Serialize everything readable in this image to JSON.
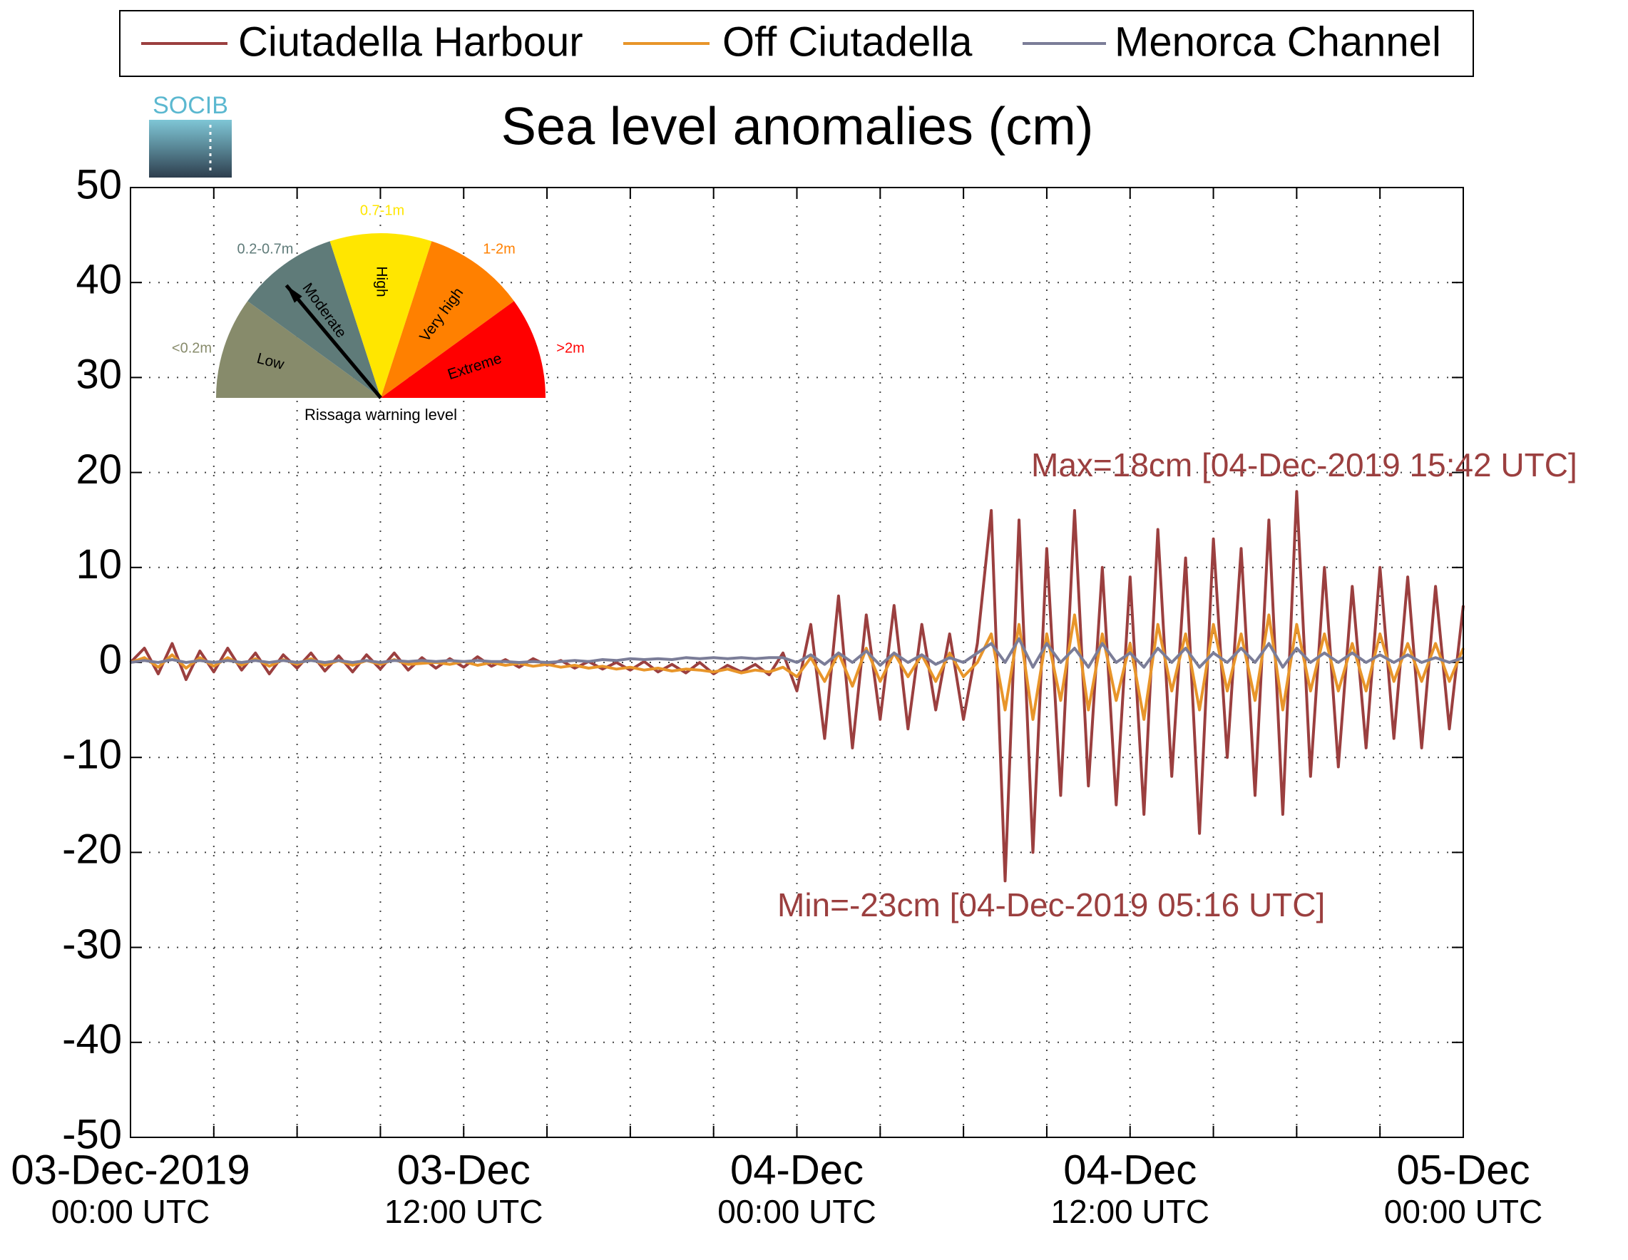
{
  "chart_data": {
    "type": "line",
    "title": "Sea level anomalies (cm)",
    "logo": "SOCIB",
    "x": [
      "2019-12-03T00:00",
      "2019-12-03T00:30",
      "2019-12-03T01:00",
      "2019-12-03T01:30",
      "2019-12-03T02:00",
      "2019-12-03T02:30",
      "2019-12-03T03:00",
      "2019-12-03T03:30",
      "2019-12-03T04:00",
      "2019-12-03T04:30",
      "2019-12-03T05:00",
      "2019-12-03T05:30",
      "2019-12-03T06:00",
      "2019-12-03T06:30",
      "2019-12-03T07:00",
      "2019-12-03T07:30",
      "2019-12-03T08:00",
      "2019-12-03T08:30",
      "2019-12-03T09:00",
      "2019-12-03T09:30",
      "2019-12-03T10:00",
      "2019-12-03T10:30",
      "2019-12-03T11:00",
      "2019-12-03T11:30",
      "2019-12-03T12:00",
      "2019-12-03T12:30",
      "2019-12-03T13:00",
      "2019-12-03T13:30",
      "2019-12-03T14:00",
      "2019-12-03T14:30",
      "2019-12-03T15:00",
      "2019-12-03T15:30",
      "2019-12-03T16:00",
      "2019-12-03T16:30",
      "2019-12-03T17:00",
      "2019-12-03T17:30",
      "2019-12-03T18:00",
      "2019-12-03T18:30",
      "2019-12-03T19:00",
      "2019-12-03T19:30",
      "2019-12-03T20:00",
      "2019-12-03T20:30",
      "2019-12-03T21:00",
      "2019-12-03T21:30",
      "2019-12-03T22:00",
      "2019-12-03T22:30",
      "2019-12-03T23:00",
      "2019-12-03T23:30",
      "2019-12-04T00:00",
      "2019-12-04T00:30",
      "2019-12-04T01:00",
      "2019-12-04T01:30",
      "2019-12-04T02:00",
      "2019-12-04T02:30",
      "2019-12-04T03:00",
      "2019-12-04T03:30",
      "2019-12-04T04:00",
      "2019-12-04T04:30",
      "2019-12-04T05:00",
      "2019-12-04T05:30",
      "2019-12-04T06:00",
      "2019-12-04T06:30",
      "2019-12-04T07:00",
      "2019-12-04T07:30",
      "2019-12-04T08:00",
      "2019-12-04T08:30",
      "2019-12-04T09:00",
      "2019-12-04T09:30",
      "2019-12-04T10:00",
      "2019-12-04T10:30",
      "2019-12-04T11:00",
      "2019-12-04T11:30",
      "2019-12-04T12:00",
      "2019-12-04T12:30",
      "2019-12-04T13:00",
      "2019-12-04T13:30",
      "2019-12-04T14:00",
      "2019-12-04T14:30",
      "2019-12-04T15:00",
      "2019-12-04T15:30",
      "2019-12-04T16:00",
      "2019-12-04T16:30",
      "2019-12-04T17:00",
      "2019-12-04T17:30",
      "2019-12-04T18:00",
      "2019-12-04T18:30",
      "2019-12-04T19:00",
      "2019-12-04T19:30",
      "2019-12-04T20:00",
      "2019-12-04T20:30",
      "2019-12-04T21:00",
      "2019-12-04T21:30",
      "2019-12-04T22:00",
      "2019-12-04T22:30",
      "2019-12-04T23:00",
      "2019-12-04T23:30",
      "2019-12-05T00:00"
    ],
    "series": [
      {
        "name": "Ciutadella Harbour",
        "color": "#9b3f3f",
        "values": [
          0,
          1.5,
          -1.2,
          2,
          -1.8,
          1.2,
          -1,
          1.5,
          -0.8,
          1,
          -1.2,
          0.8,
          -0.6,
          1,
          -0.9,
          0.7,
          -1,
          0.8,
          -0.7,
          1,
          -0.8,
          0.5,
          -0.6,
          0.4,
          -0.5,
          0.6,
          -0.4,
          0.3,
          -0.5,
          0.4,
          -0.3,
          0.2,
          -0.6,
          0.1,
          -0.7,
          0,
          -0.8,
          0.1,
          -1,
          -0.2,
          -1.1,
          0,
          -1.2,
          -0.3,
          -1,
          -0.2,
          -1.3,
          1,
          -3,
          4,
          -8,
          7,
          -9,
          5,
          -6,
          6,
          -7,
          4,
          -5,
          3,
          -6,
          2,
          16,
          -23,
          15,
          -20,
          12,
          -14,
          16,
          -13,
          10,
          -15,
          9,
          -16,
          14,
          -12,
          11,
          -18,
          13,
          -10,
          12,
          -14,
          15,
          -16,
          18,
          -12,
          10,
          -11,
          8,
          -9,
          10,
          -8,
          9,
          -9,
          8,
          -7,
          6
        ]
      },
      {
        "name": "Off Ciutadella",
        "color": "#e8952a",
        "values": [
          0,
          0.5,
          -0.5,
          0.8,
          -0.6,
          0.5,
          -0.4,
          0.5,
          -0.3,
          0.4,
          -0.4,
          0.3,
          -0.2,
          0.4,
          -0.3,
          0.2,
          -0.3,
          0.2,
          -0.2,
          0.3,
          -0.2,
          -0.1,
          0,
          -0.2,
          0.1,
          -0.3,
          0,
          -0.3,
          -0.1,
          -0.4,
          -0.2,
          -0.5,
          -0.3,
          -0.6,
          -0.4,
          -0.7,
          -0.5,
          -0.8,
          -0.6,
          -0.9,
          -0.7,
          -0.8,
          -1,
          -0.7,
          -1.1,
          -0.8,
          -1,
          -0.5,
          -1.5,
          0.5,
          -2,
          1,
          -2.5,
          1.5,
          -2,
          1,
          -1.5,
          0.8,
          -2,
          1,
          -1.5,
          0,
          3,
          -5,
          4,
          -6,
          3,
          -4,
          5,
          -5,
          3,
          -4,
          2,
          -6,
          4,
          -3,
          3,
          -5,
          4,
          -3,
          3,
          -4,
          5,
          -5,
          4,
          -3,
          3,
          -3,
          2,
          -3,
          3,
          -2,
          2,
          -2,
          2,
          -2,
          1.5
        ]
      },
      {
        "name": "Menorca Channel",
        "color": "#7b7d98",
        "values": [
          0,
          0.2,
          0,
          0.3,
          0,
          0.2,
          0,
          0.2,
          0,
          0.2,
          0,
          0.2,
          0,
          0.2,
          0,
          0.2,
          0,
          0.2,
          0,
          0.2,
          0.1,
          0.2,
          0.1,
          0.2,
          0.1,
          0.2,
          0.1,
          0.1,
          0,
          0.1,
          0,
          0.1,
          0.2,
          0.1,
          0.3,
          0.2,
          0.4,
          0.3,
          0.4,
          0.3,
          0.5,
          0.4,
          0.5,
          0.4,
          0.5,
          0.4,
          0.5,
          0.5,
          0,
          0.8,
          -0.2,
          1,
          0,
          1.2,
          -0.3,
          1,
          0,
          0.8,
          -0.2,
          0.5,
          0,
          1,
          2,
          0,
          2.5,
          -0.5,
          2,
          0,
          1.5,
          -0.5,
          2,
          0,
          1,
          -0.5,
          1.5,
          0,
          1.5,
          -0.5,
          1,
          0,
          1.5,
          0,
          2,
          -0.5,
          1.5,
          0,
          1,
          0,
          1,
          0,
          0.8,
          0,
          0.8,
          0,
          0.5,
          0,
          0.5
        ]
      }
    ],
    "xlim": [
      "2019-12-03T00:00",
      "2019-12-05T00:00"
    ],
    "xticks": [
      {
        "value": "2019-12-03T00:00",
        "label": [
          "03-Dec-2019",
          "00:00 UTC"
        ]
      },
      {
        "value": "2019-12-03T12:00",
        "label": [
          "03-Dec",
          "12:00 UTC"
        ]
      },
      {
        "value": "2019-12-04T00:00",
        "label": [
          "04-Dec",
          "00:00 UTC"
        ]
      },
      {
        "value": "2019-12-04T12:00",
        "label": [
          "04-Dec",
          "12:00 UTC"
        ]
      },
      {
        "value": "2019-12-05T00:00",
        "label": [
          "05-Dec",
          "00:00 UTC"
        ]
      }
    ],
    "xminorticks": [
      "2019-12-03T03:00",
      "2019-12-03T06:00",
      "2019-12-03T09:00",
      "2019-12-03T15:00",
      "2019-12-03T18:00",
      "2019-12-03T21:00",
      "2019-12-04T03:00",
      "2019-12-04T06:00",
      "2019-12-04T09:00",
      "2019-12-04T15:00",
      "2019-12-04T18:00",
      "2019-12-04T21:00"
    ],
    "ylim": [
      -50,
      50
    ],
    "yticks": [
      -50,
      -40,
      -30,
      -20,
      -10,
      0,
      10,
      20,
      30,
      40,
      50
    ],
    "grid": true,
    "legend": "top",
    "annotations": [
      {
        "text": "Max=18cm [04-Dec-2019 15:42 UTC]",
        "color": "#9b3f3f"
      },
      {
        "text": "Min=-23cm [04-Dec-2019 05:16 UTC]",
        "color": "#9b3f3f"
      }
    ],
    "gauge": {
      "title": "Rissaga warning level",
      "levels": [
        {
          "name": "Low",
          "range": "<0.2m",
          "color": "#878b6b",
          "range_color": "#878b6b"
        },
        {
          "name": "Moderate",
          "range": "0.2-0.7m",
          "color": "#5f7b79",
          "range_color": "#5f7b79"
        },
        {
          "name": "High",
          "range": "0.7-1m",
          "color": "#ffe600",
          "range_color": "#ffe600"
        },
        {
          "name": "Very high",
          "range": "1-2m",
          "color": "#ff8000",
          "range_color": "#ff8000"
        },
        {
          "name": "Extreme",
          "range": ">2m",
          "color": "#ff0000",
          "range_color": "#ff0000"
        }
      ]
    }
  }
}
